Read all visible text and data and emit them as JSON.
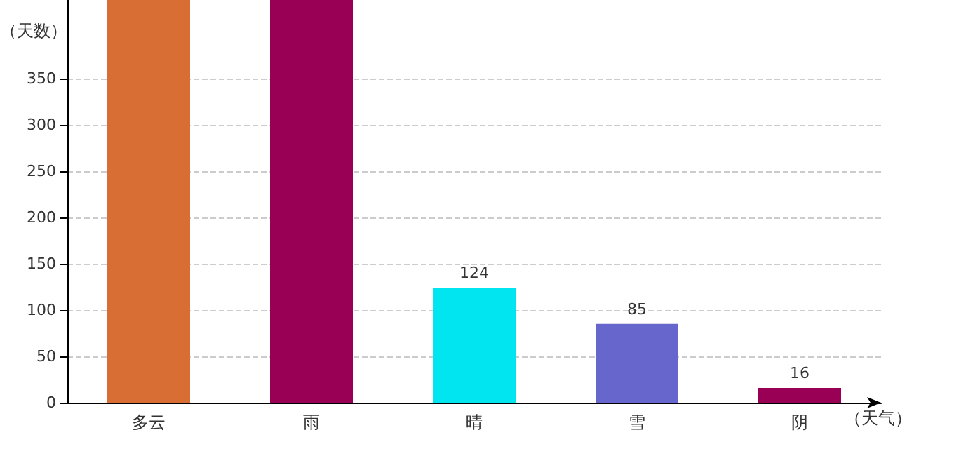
{
  "chart_data": {
    "type": "bar",
    "xlabel": "（天气）",
    "ylabel": "（天数）",
    "categories": [
      "多云",
      "雨",
      "晴",
      "雪",
      "阴"
    ],
    "values": [
      435,
      435,
      124,
      85,
      16
    ],
    "value_labels": [
      null,
      null,
      "124",
      "85",
      "16"
    ],
    "colors": [
      "#d96e35",
      "#990055",
      "#00e5ef",
      "#6666cc",
      "#990055"
    ],
    "ylim": [
      0,
      435
    ],
    "yticks": [
      0,
      50,
      100,
      150,
      200,
      250,
      300,
      350
    ],
    "grid": "y"
  }
}
